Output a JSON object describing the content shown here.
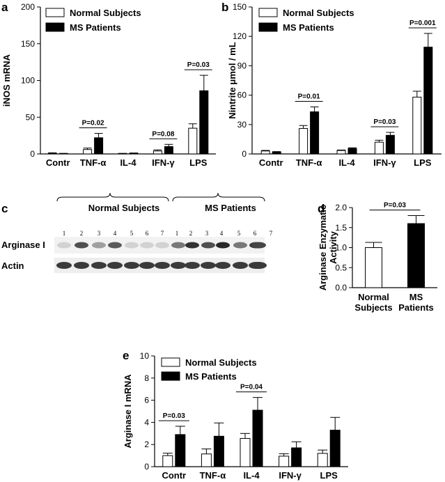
{
  "legend": {
    "normal": "Normal Subjects",
    "ms": "MS Patients"
  },
  "chart_data": [
    {
      "panel": "a",
      "type": "bar",
      "ylabel": "iNOS mRNA",
      "ylim": [
        0,
        200
      ],
      "yticks": [
        0,
        50,
        100,
        150,
        200
      ],
      "categories": [
        "Contr",
        "TNF-α",
        "IL-4",
        "IFN-γ",
        "LPS"
      ],
      "series": [
        {
          "name": "Normal Subjects",
          "values": [
            1,
            6,
            0.5,
            4,
            35
          ],
          "errors": [
            0.5,
            2,
            0.3,
            1.5,
            6
          ]
        },
        {
          "name": "MS Patients",
          "values": [
            0.5,
            22,
            1,
            10,
            86
          ],
          "errors": [
            0.3,
            6,
            0.3,
            3,
            21
          ]
        }
      ],
      "annotations": [
        {
          "category": "TNF-α",
          "text": "P=0.02"
        },
        {
          "category": "IFN-γ",
          "text": "P=0.08"
        },
        {
          "category": "LPS",
          "text": "P=0.03"
        }
      ]
    },
    {
      "panel": "b",
      "type": "bar",
      "ylabel": "Nintrite μmol / mL",
      "ylim": [
        0,
        150
      ],
      "yticks": [
        0,
        30,
        60,
        90,
        120,
        150
      ],
      "categories": [
        "Contr",
        "TNF-α",
        "IL-4",
        "IFN-γ",
        "LPS"
      ],
      "series": [
        {
          "name": "Normal Subjects",
          "values": [
            3,
            26,
            3.5,
            12,
            58
          ],
          "errors": [
            0.6,
            3,
            0.5,
            2,
            6
          ]
        },
        {
          "name": "MS Patients",
          "values": [
            2,
            43,
            5.5,
            19,
            109
          ],
          "errors": [
            0.4,
            5,
            0.8,
            3,
            14
          ]
        }
      ],
      "annotations": [
        {
          "category": "TNF-α",
          "text": "P=0.01"
        },
        {
          "category": "IFN-γ",
          "text": "P=0.03"
        },
        {
          "category": "LPS",
          "text": "P=0.001"
        }
      ]
    },
    {
      "panel": "d",
      "type": "bar",
      "ylabel": "Arginase Enzymatic Activity",
      "ylabel_lines": [
        "Arginase Enzymatic",
        "Activity"
      ],
      "ylim": [
        0,
        2.0
      ],
      "yticks": [
        "0.0",
        "0.5",
        "1.0",
        "1.5",
        "2.0"
      ],
      "categories": [
        "Normal Subjects",
        "MS Patients"
      ],
      "category_lines": [
        [
          "Normal",
          "Subjects"
        ],
        [
          "MS",
          "Patients"
        ]
      ],
      "series": [
        {
          "name": "Activity",
          "values": [
            1.0,
            1.6
          ],
          "errors": [
            0.13,
            0.2
          ]
        }
      ],
      "annotations": [
        {
          "text": "P=0.03"
        }
      ]
    },
    {
      "panel": "e",
      "type": "bar",
      "ylabel": "Arginase I mRNA",
      "ylim": [
        0,
        10
      ],
      "yticks": [
        0,
        2,
        4,
        6,
        8,
        10
      ],
      "categories": [
        "Contr",
        "TNF-α",
        "IL-4",
        "IFN-γ",
        "LPS"
      ],
      "series": [
        {
          "name": "Normal Subjects",
          "values": [
            1.0,
            1.15,
            2.55,
            0.95,
            1.2
          ],
          "errors": [
            0.22,
            0.45,
            0.45,
            0.22,
            0.3
          ]
        },
        {
          "name": "MS Patients",
          "values": [
            2.9,
            2.75,
            5.1,
            1.7,
            3.3
          ],
          "errors": [
            0.75,
            1.2,
            1.15,
            0.55,
            1.15
          ]
        }
      ],
      "annotations": [
        {
          "category": "Contr",
          "text": "P=0.03"
        },
        {
          "category": "IL-4",
          "text": "P=0.04"
        }
      ]
    }
  ],
  "panel_c": {
    "letter": "c",
    "group_normal": "Normal Subjects",
    "group_ms": "MS Patients",
    "row_arginase": "Arginase I",
    "row_actin": "Actin",
    "lanes_normal": [
      "1",
      "2",
      "3",
      "4",
      "5",
      "6",
      "7"
    ],
    "lanes_ms": [
      "1",
      "2",
      "3",
      "4",
      "5",
      "6",
      "7"
    ]
  }
}
